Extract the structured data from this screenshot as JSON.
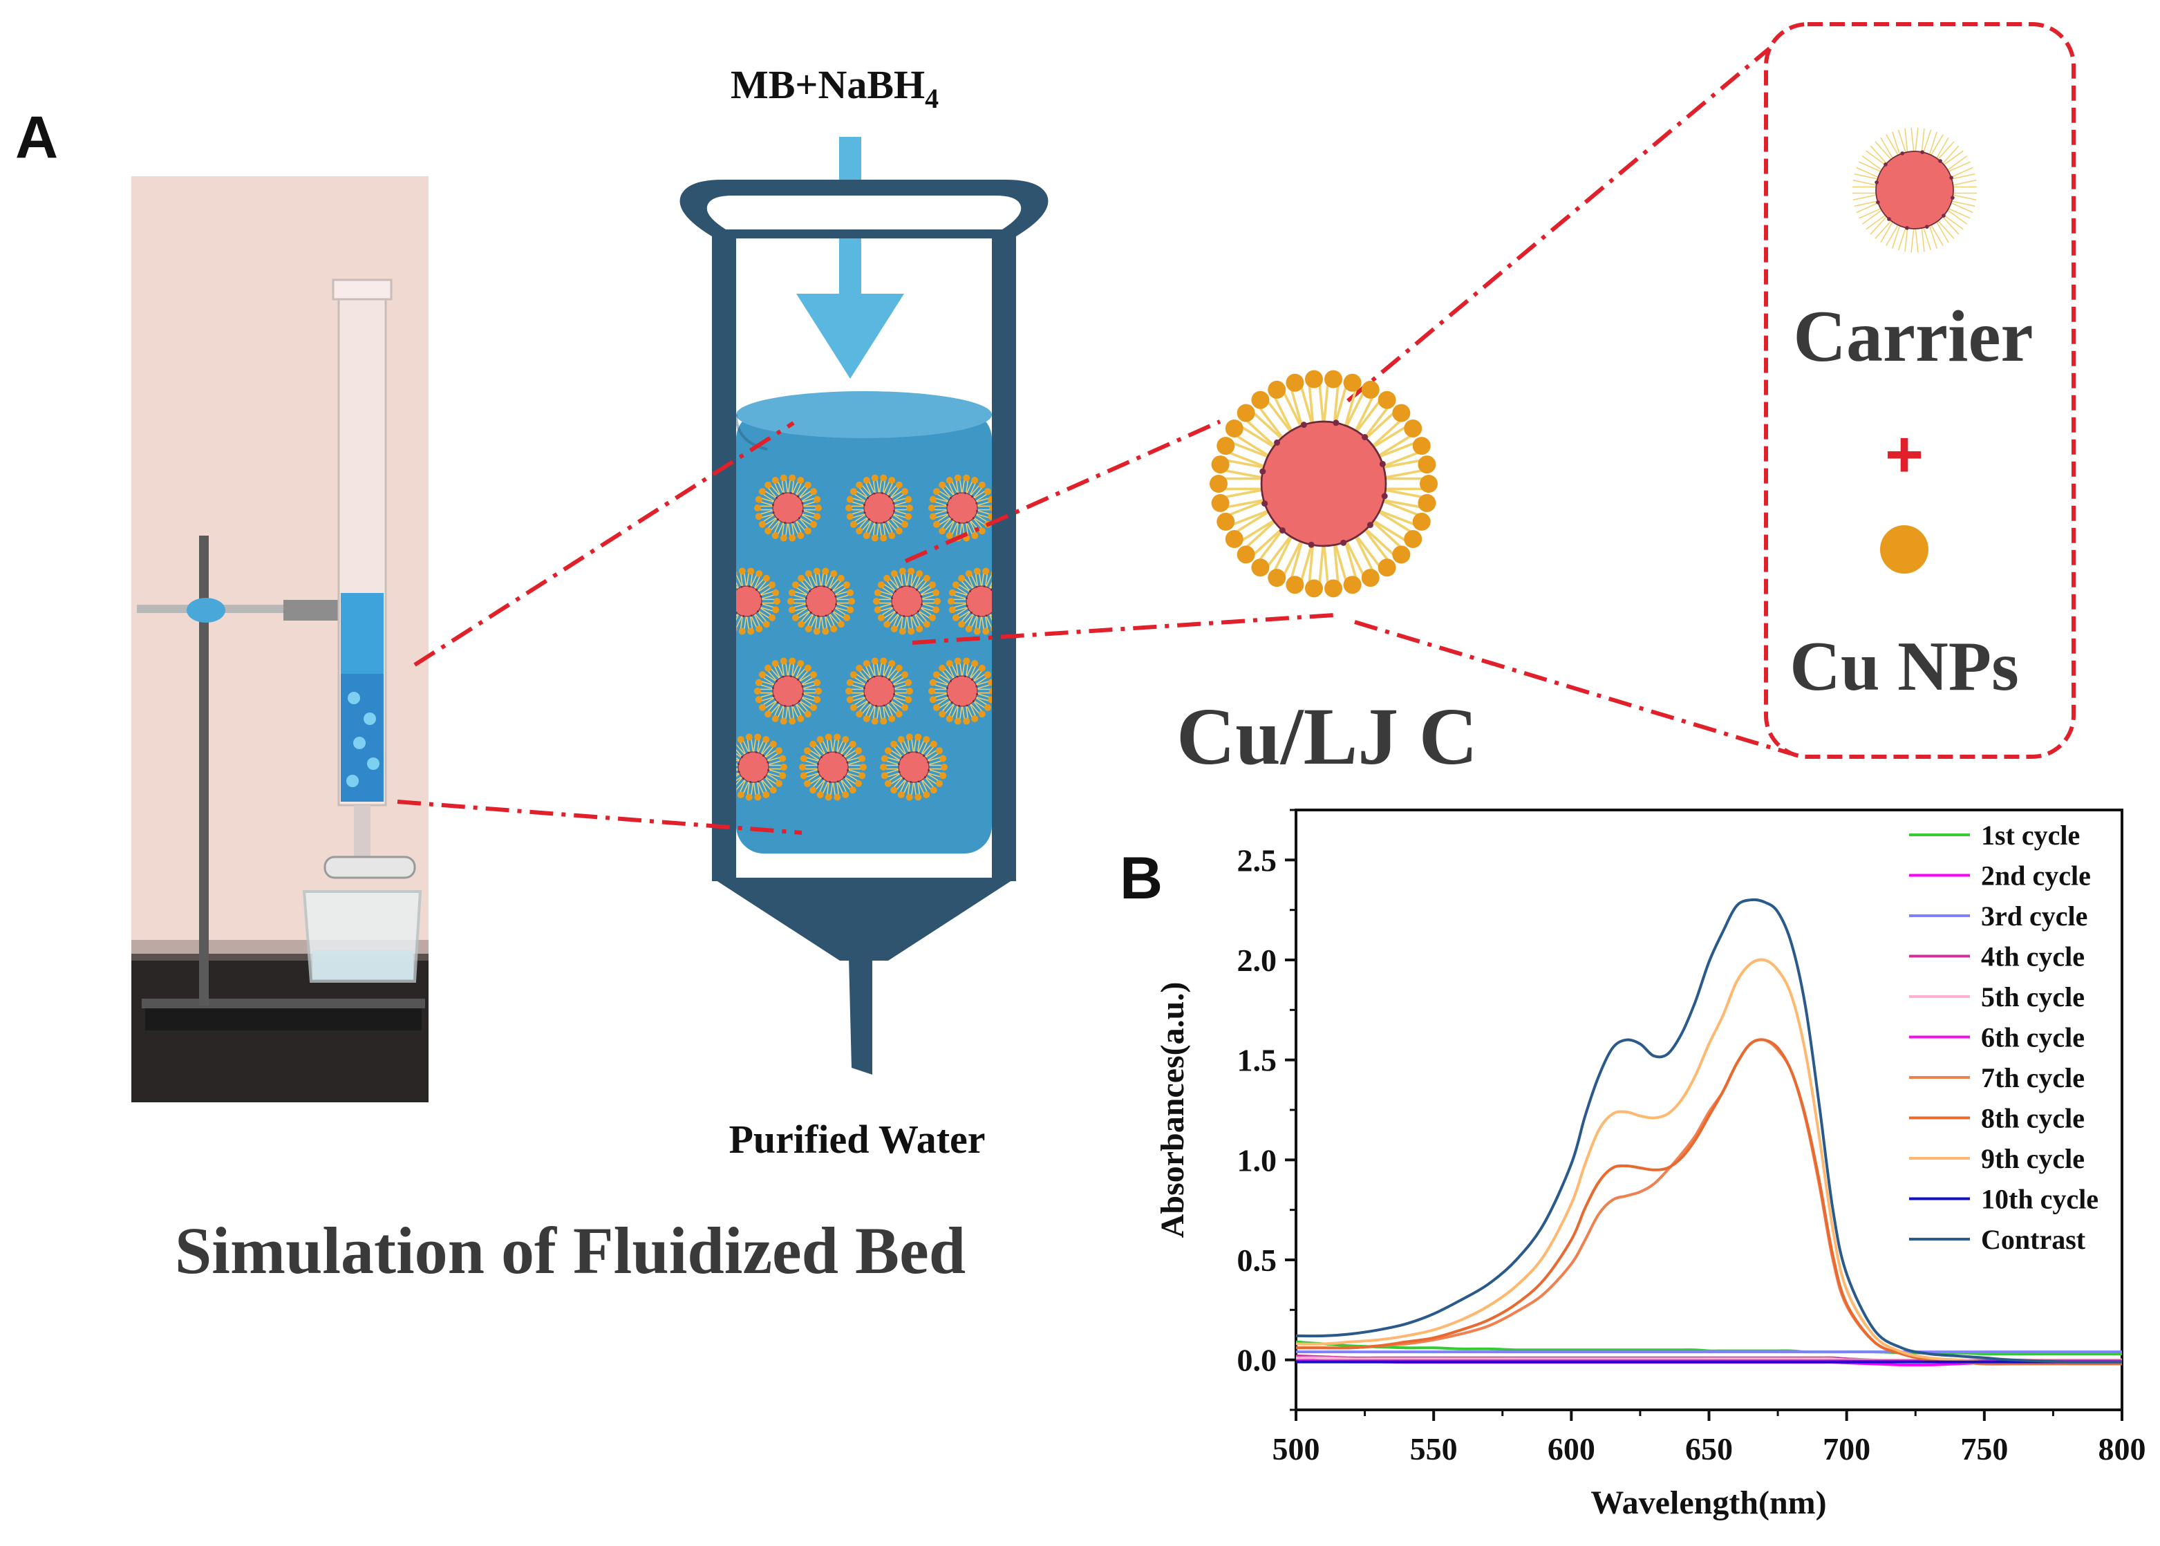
{
  "panel_a": {
    "label": "A",
    "inlet_label": "MB+NaBH",
    "inlet_subscript": "4",
    "outlet_label": "Purified Water",
    "title": "Simulation of Fluidized Bed",
    "composite_label": "Cu/LJ C",
    "legend_box": {
      "carrier_label": "Carrier",
      "plus_sign": "+",
      "cu_label": "Cu NPs"
    }
  },
  "panel_b": {
    "label": "B"
  },
  "colors": {
    "dashed_line": "#e0202a",
    "reactor": "#2e5470",
    "liquid": "#3f97c6",
    "arrow": "#5ab8e0",
    "carrier": "#ee6b6b",
    "cu": "#e89a1d",
    "tail": "#f1d16b"
  },
  "chart_data": {
    "type": "line",
    "xlabel": "Wavelength(nm)",
    "ylabel": "Absorbances(a.u.)",
    "xlim": [
      500,
      800
    ],
    "ylim": [
      -0.25,
      2.75
    ],
    "xticks": [
      500,
      550,
      600,
      650,
      700,
      750,
      800
    ],
    "yticks": [
      0.0,
      0.5,
      1.0,
      1.5,
      2.0,
      2.5
    ],
    "xtick_labels": [
      "500",
      "550",
      "600",
      "650",
      "700",
      "750",
      "800"
    ],
    "ytick_labels": [
      "0.0",
      "0.5",
      "1.0",
      "1.5",
      "2.0",
      "2.5"
    ],
    "legend_position": "top-right",
    "x": [
      500,
      510,
      520,
      530,
      540,
      550,
      560,
      570,
      580,
      590,
      600,
      605,
      610,
      615,
      620,
      625,
      630,
      635,
      640,
      645,
      650,
      655,
      660,
      665,
      670,
      675,
      680,
      685,
      690,
      695,
      700,
      710,
      720,
      730,
      740,
      750,
      760,
      780,
      800
    ],
    "series": [
      {
        "name": "1st cycle",
        "color": "#33cc33",
        "values": [
          0.09,
          0.08,
          0.07,
          0.065,
          0.06,
          0.06,
          0.055,
          0.055,
          0.05,
          0.05,
          0.05,
          0.05,
          0.05,
          0.05,
          0.05,
          0.05,
          0.05,
          0.05,
          0.05,
          0.05,
          0.045,
          0.045,
          0.045,
          0.045,
          0.045,
          0.045,
          0.045,
          0.04,
          0.04,
          0.04,
          0.04,
          0.04,
          0.035,
          0.035,
          0.035,
          0.03,
          0.03,
          0.03,
          0.03
        ]
      },
      {
        "name": "2nd cycle",
        "color": "#ff00ff",
        "values": [
          0.0,
          -0.005,
          -0.01,
          -0.01,
          -0.012,
          -0.012,
          -0.012,
          -0.012,
          -0.012,
          -0.012,
          -0.012,
          -0.012,
          -0.012,
          -0.012,
          -0.012,
          -0.012,
          -0.012,
          -0.012,
          -0.012,
          -0.012,
          -0.012,
          -0.012,
          -0.012,
          -0.012,
          -0.012,
          -0.012,
          -0.012,
          -0.012,
          -0.012,
          -0.012,
          -0.015,
          -0.02,
          -0.025,
          -0.025,
          -0.02,
          -0.015,
          -0.015,
          -0.015,
          -0.015
        ]
      },
      {
        "name": "3rd cycle",
        "color": "#8080ff",
        "values": [
          0.04,
          0.04,
          0.04,
          0.04,
          0.04,
          0.04,
          0.04,
          0.04,
          0.04,
          0.04,
          0.04,
          0.04,
          0.04,
          0.04,
          0.04,
          0.04,
          0.04,
          0.04,
          0.04,
          0.04,
          0.04,
          0.04,
          0.04,
          0.04,
          0.04,
          0.04,
          0.04,
          0.04,
          0.04,
          0.04,
          0.04,
          0.04,
          0.04,
          0.04,
          0.04,
          0.04,
          0.04,
          0.04,
          0.04
        ]
      },
      {
        "name": "4th cycle",
        "color": "#cc3399",
        "values": [
          0.02,
          0.015,
          0.01,
          0.01,
          0.01,
          0.01,
          0.01,
          0.01,
          0.01,
          0.01,
          0.01,
          0.01,
          0.01,
          0.01,
          0.01,
          0.01,
          0.01,
          0.01,
          0.01,
          0.01,
          0.01,
          0.01,
          0.01,
          0.01,
          0.01,
          0.01,
          0.01,
          0.01,
          0.01,
          0.01,
          0.005,
          0.0,
          -0.005,
          -0.005,
          -0.005,
          -0.005,
          -0.005,
          -0.005,
          -0.005
        ]
      },
      {
        "name": "5th cycle",
        "color": "#ffb0d0",
        "values": [
          0.01,
          0.01,
          0.005,
          0.005,
          0.005,
          0.005,
          0.005,
          0.005,
          0.005,
          0.005,
          0.005,
          0.005,
          0.005,
          0.005,
          0.005,
          0.005,
          0.005,
          0.005,
          0.005,
          0.005,
          0.005,
          0.005,
          0.005,
          0.005,
          0.005,
          0.005,
          0.005,
          0.005,
          0.005,
          0.005,
          0.0,
          0.0,
          0.0,
          0.0,
          0.0,
          0.0,
          0.0,
          0.0,
          0.0
        ]
      },
      {
        "name": "6th cycle",
        "color": "#ee11ee",
        "values": [
          -0.005,
          -0.005,
          -0.005,
          -0.005,
          -0.005,
          -0.005,
          -0.005,
          -0.005,
          -0.005,
          -0.005,
          -0.005,
          -0.005,
          -0.005,
          -0.005,
          -0.005,
          -0.005,
          -0.005,
          -0.005,
          -0.005,
          -0.005,
          -0.005,
          -0.005,
          -0.005,
          -0.005,
          -0.005,
          -0.005,
          -0.005,
          -0.005,
          -0.005,
          -0.005,
          -0.005,
          -0.005,
          -0.005,
          -0.005,
          -0.005,
          -0.005,
          -0.005,
          -0.005,
          -0.005
        ]
      },
      {
        "name": "7th cycle",
        "color": "#f08050",
        "values": [
          0.06,
          0.06,
          0.06,
          0.07,
          0.08,
          0.1,
          0.13,
          0.17,
          0.24,
          0.33,
          0.48,
          0.6,
          0.73,
          0.8,
          0.82,
          0.84,
          0.88,
          0.95,
          1.03,
          1.12,
          1.24,
          1.34,
          1.48,
          1.58,
          1.6,
          1.55,
          1.44,
          1.21,
          0.88,
          0.5,
          0.27,
          0.09,
          0.03,
          0.0,
          -0.01,
          -0.02,
          -0.02,
          -0.02,
          -0.02
        ]
      },
      {
        "name": "8th cycle",
        "color": "#e86a30",
        "values": [
          0.06,
          0.06,
          0.06,
          0.07,
          0.09,
          0.11,
          0.15,
          0.2,
          0.28,
          0.4,
          0.6,
          0.76,
          0.89,
          0.96,
          0.97,
          0.96,
          0.95,
          0.96,
          1.01,
          1.1,
          1.22,
          1.34,
          1.48,
          1.58,
          1.6,
          1.56,
          1.44,
          1.22,
          0.9,
          0.52,
          0.28,
          0.09,
          0.03,
          0.0,
          -0.01,
          -0.02,
          -0.02,
          -0.02,
          -0.02
        ]
      },
      {
        "name": "9th cycle",
        "color": "#ffb870",
        "values": [
          0.08,
          0.08,
          0.09,
          0.1,
          0.12,
          0.15,
          0.2,
          0.27,
          0.37,
          0.52,
          0.78,
          0.98,
          1.15,
          1.23,
          1.24,
          1.22,
          1.21,
          1.23,
          1.3,
          1.42,
          1.58,
          1.72,
          1.89,
          1.98,
          2.0,
          1.95,
          1.82,
          1.54,
          1.12,
          0.65,
          0.35,
          0.12,
          0.04,
          0.01,
          0.0,
          -0.01,
          -0.01,
          -0.01,
          -0.01
        ]
      },
      {
        "name": "10th cycle",
        "color": "#1010cc",
        "values": [
          -0.01,
          -0.01,
          -0.01,
          -0.01,
          -0.01,
          -0.01,
          -0.01,
          -0.01,
          -0.01,
          -0.01,
          -0.01,
          -0.01,
          -0.01,
          -0.01,
          -0.01,
          -0.01,
          -0.01,
          -0.01,
          -0.01,
          -0.01,
          -0.01,
          -0.01,
          -0.01,
          -0.01,
          -0.01,
          -0.01,
          -0.01,
          -0.01,
          -0.01,
          -0.01,
          -0.01,
          -0.01,
          -0.01,
          -0.01,
          -0.01,
          -0.01,
          -0.01,
          -0.01,
          -0.01
        ]
      },
      {
        "name": "Contrast",
        "color": "#2a5a8c",
        "values": [
          0.12,
          0.12,
          0.13,
          0.15,
          0.18,
          0.23,
          0.3,
          0.38,
          0.5,
          0.68,
          0.98,
          1.22,
          1.42,
          1.56,
          1.6,
          1.58,
          1.52,
          1.53,
          1.63,
          1.79,
          1.99,
          2.14,
          2.27,
          2.3,
          2.29,
          2.24,
          2.08,
          1.77,
          1.28,
          0.75,
          0.43,
          0.15,
          0.06,
          0.03,
          0.02,
          0.01,
          0.0,
          -0.01,
          -0.01
        ]
      }
    ]
  }
}
